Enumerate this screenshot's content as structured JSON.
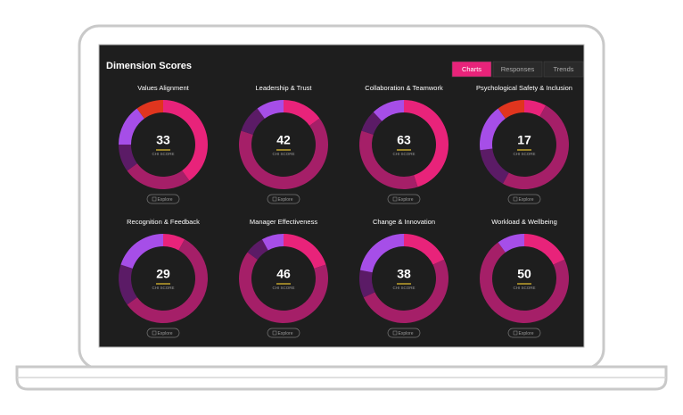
{
  "header": {
    "title": "Dimension Scores"
  },
  "tabs": [
    "Charts",
    "Responses",
    "Trends"
  ],
  "active_tab": 0,
  "chart_data": [
    {
      "type": "donut",
      "title": "Values Alignment",
      "center_value": 33,
      "center_label": "CHI SCORE",
      "button": "Explore",
      "values": [
        40,
        25,
        10,
        15,
        10
      ],
      "colors": [
        "#e8237a",
        "#a51f68",
        "#5b1b66",
        "#a64ee8",
        "#e0351e"
      ]
    },
    {
      "type": "donut",
      "title": "Leadership & Trust",
      "center_value": 42,
      "center_label": "CHI SCORE",
      "button": "Explore",
      "values": [
        15,
        65,
        10,
        10
      ],
      "colors": [
        "#e8237a",
        "#a51f68",
        "#5b1b66",
        "#a64ee8"
      ]
    },
    {
      "type": "donut",
      "title": "Collaboration & Teamwork",
      "center_value": 63,
      "center_label": "CHI SCORE",
      "button": "Explore",
      "values": [
        45,
        35,
        8,
        12
      ],
      "colors": [
        "#e8237a",
        "#a51f68",
        "#5b1b66",
        "#a64ee8"
      ]
    },
    {
      "type": "donut",
      "title": "Psychological Safety & Inclusion",
      "center_value": 17,
      "center_label": "CHI SCORE",
      "button": "Explore",
      "values": [
        8,
        50,
        15,
        17,
        10
      ],
      "colors": [
        "#e8237a",
        "#a51f68",
        "#5b1b66",
        "#a64ee8",
        "#e0351e"
      ]
    },
    {
      "type": "donut",
      "title": "Recognition & Feedback",
      "center_value": 29,
      "center_label": "CHI SCORE",
      "button": "Explore",
      "values": [
        8,
        57,
        15,
        20
      ],
      "colors": [
        "#e8237a",
        "#a51f68",
        "#5b1b66",
        "#a64ee8"
      ]
    },
    {
      "type": "donut",
      "title": "Manager Effectiveness",
      "center_value": 46,
      "center_label": "CHI SCORE",
      "button": "Explore",
      "values": [
        20,
        65,
        7,
        8
      ],
      "colors": [
        "#e8237a",
        "#a51f68",
        "#5b1b66",
        "#a64ee8"
      ]
    },
    {
      "type": "donut",
      "title": "Change & Innovation",
      "center_value": 38,
      "center_label": "CHI SCORE",
      "button": "Explore",
      "values": [
        18,
        50,
        10,
        22
      ],
      "colors": [
        "#e8237a",
        "#a51f68",
        "#5b1b66",
        "#a64ee8"
      ]
    },
    {
      "type": "donut",
      "title": "Workload & Wellbeing",
      "center_value": 50,
      "center_label": "CHI SCORE",
      "button": "Explore",
      "values": [
        18,
        72,
        10
      ],
      "colors": [
        "#e8237a",
        "#a51f68",
        "#a64ee8"
      ]
    }
  ]
}
